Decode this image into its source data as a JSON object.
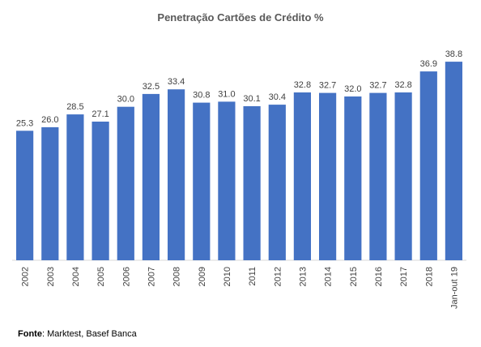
{
  "chart_data": {
    "type": "bar",
    "title": "Penetração Cartões de Crédito %",
    "categories": [
      "2002",
      "2003",
      "2004",
      "2005",
      "2006",
      "2007",
      "2008",
      "2009",
      "2010",
      "2011",
      "2012",
      "2013",
      "2014",
      "2015",
      "2016",
      "2017",
      "2018",
      "Jan-out 19"
    ],
    "values": [
      25.3,
      26.0,
      28.5,
      27.1,
      30.0,
      32.5,
      33.4,
      30.8,
      31.0,
      30.1,
      30.4,
      32.8,
      32.7,
      32.0,
      32.7,
      32.8,
      36.9,
      38.8
    ],
    "value_labels": [
      "25.3",
      "26.0",
      "28.5",
      "27.1",
      "30.0",
      "32.5",
      "33.4",
      "30.8",
      "31.0",
      "30.1",
      "30.4",
      "32.8",
      "32.7",
      "32.0",
      "32.7",
      "32.8",
      "36.9",
      "38.8"
    ],
    "xlabel": "",
    "ylabel": "",
    "ylim": [
      0,
      45
    ],
    "bar_color": "#4472C4",
    "grid": false,
    "legend": "none"
  },
  "source": {
    "label": "Fonte",
    "text": ": Marktest, Basef Banca"
  }
}
